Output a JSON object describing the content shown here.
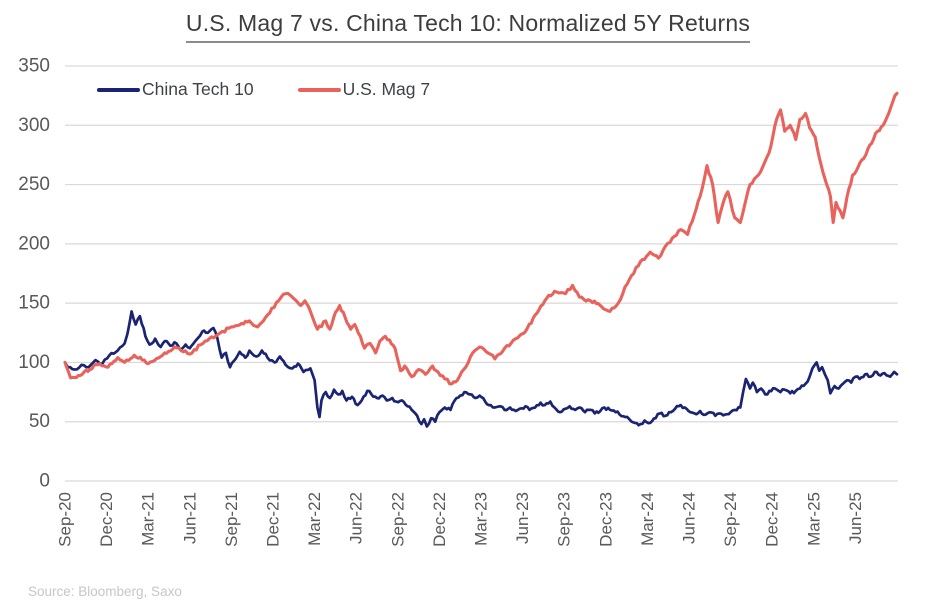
{
  "header": {
    "title": "U.S. Mag 7 vs. China Tech 10: Normalized 5Y Returns"
  },
  "footer": {
    "source": "Source: Bloomberg, Saxo"
  },
  "legend": {
    "items": [
      {
        "label": "China Tech 10",
        "color": "#1a2473"
      },
      {
        "label": "U.S. Mag 7",
        "color": "#e8635c"
      }
    ]
  },
  "colors": {
    "background": "#ffffff",
    "gridline": "#d9d9d9",
    "axis_text": "#595959",
    "title_text": "#3d3d3d",
    "title_underline": "#8c8c8c",
    "source_text": "#c6c6ce",
    "china_tech_10": "#1a2473",
    "us_mag_7": "#e8635c"
  },
  "chart_data": {
    "type": "line",
    "title": "U.S. Mag 7 vs. China Tech 10: Normalized 5Y Returns",
    "xlabel": "",
    "ylabel": "",
    "x_axis": {
      "tick_labels": [
        "Sep-20",
        "Dec-20",
        "Mar-21",
        "Jun-21",
        "Sep-21",
        "Dec-21",
        "Mar-22",
        "Jun-22",
        "Sep-22",
        "Dec-22",
        "Mar-23",
        "Jun-23",
        "Sep-23",
        "Dec-23",
        "Mar-24",
        "Jun-24",
        "Sep-24",
        "Dec-24",
        "Mar-25",
        "Jun-25"
      ],
      "tick_label_rotation_deg": 90,
      "months_range": [
        0,
        60
      ],
      "note": "x in months since Sep-2020; data extends ~1 quarter past the Jun-25 tick"
    },
    "y_axis": {
      "ticks": [
        0,
        50,
        100,
        150,
        200,
        250,
        300,
        350
      ],
      "range": [
        0,
        350
      ],
      "gridlines": true
    },
    "legend_position": "top-left",
    "series": [
      {
        "name": "China Tech 10",
        "color": "#1a2473",
        "points": [
          [
            0,
            100
          ],
          [
            0.2,
            96
          ],
          [
            0.7,
            94
          ],
          [
            1.2,
            98
          ],
          [
            1.7,
            96
          ],
          [
            2.2,
            102
          ],
          [
            2.7,
            99
          ],
          [
            3.2,
            106
          ],
          [
            3.8,
            110
          ],
          [
            4.3,
            116
          ],
          [
            4.5,
            124
          ],
          [
            4.8,
            143
          ],
          [
            5.1,
            132
          ],
          [
            5.4,
            139
          ],
          [
            5.8,
            122
          ],
          [
            6.1,
            115
          ],
          [
            6.5,
            120
          ],
          [
            6.9,
            113
          ],
          [
            7.2,
            118
          ],
          [
            7.6,
            114
          ],
          [
            7.9,
            117
          ],
          [
            8.3,
            111
          ],
          [
            8.7,
            115
          ],
          [
            9,
            112
          ],
          [
            9.4,
            118
          ],
          [
            9.9,
            126
          ],
          [
            10.3,
            125
          ],
          [
            10.7,
            129
          ],
          [
            11,
            120
          ],
          [
            11.3,
            104
          ],
          [
            11.6,
            108
          ],
          [
            11.9,
            96
          ],
          [
            12.3,
            103
          ],
          [
            12.6,
            109
          ],
          [
            13,
            104
          ],
          [
            13.3,
            110
          ],
          [
            13.8,
            105
          ],
          [
            14.2,
            110
          ],
          [
            14.6,
            104
          ],
          [
            15.1,
            100
          ],
          [
            15.5,
            105
          ],
          [
            15.9,
            98
          ],
          [
            16.4,
            95
          ],
          [
            16.8,
            99
          ],
          [
            17.2,
            92
          ],
          [
            17.7,
            95
          ],
          [
            18,
            85
          ],
          [
            18.2,
            62
          ],
          [
            18.35,
            54
          ],
          [
            18.5,
            68
          ],
          [
            18.8,
            75
          ],
          [
            19.1,
            70
          ],
          [
            19.4,
            77
          ],
          [
            19.7,
            73
          ],
          [
            20,
            76
          ],
          [
            20.3,
            68
          ],
          [
            20.7,
            71
          ],
          [
            21.1,
            64
          ],
          [
            21.4,
            68
          ],
          [
            21.8,
            76
          ],
          [
            22.1,
            73
          ],
          [
            22.5,
            70
          ],
          [
            22.9,
            72
          ],
          [
            23.2,
            68
          ],
          [
            23.6,
            70
          ],
          [
            23.9,
            67
          ],
          [
            24.3,
            68
          ],
          [
            24.7,
            63
          ],
          [
            25,
            60
          ],
          [
            25.4,
            55
          ],
          [
            25.7,
            48
          ],
          [
            25.9,
            52
          ],
          [
            26.1,
            46
          ],
          [
            26.4,
            53
          ],
          [
            26.7,
            50
          ],
          [
            27,
            58
          ],
          [
            27.4,
            62
          ],
          [
            27.8,
            60
          ],
          [
            28.1,
            68
          ],
          [
            28.5,
            72
          ],
          [
            28.8,
            75
          ],
          [
            29.2,
            73
          ],
          [
            29.6,
            70
          ],
          [
            29.9,
            72
          ],
          [
            30.3,
            67
          ],
          [
            30.7,
            64
          ],
          [
            31,
            62
          ],
          [
            31.4,
            63
          ],
          [
            31.7,
            60
          ],
          [
            32.1,
            62
          ],
          [
            32.5,
            59
          ],
          [
            32.8,
            61
          ],
          [
            33.2,
            63
          ],
          [
            33.5,
            60
          ],
          [
            33.9,
            62
          ],
          [
            34.3,
            66
          ],
          [
            34.6,
            64
          ],
          [
            35,
            67
          ],
          [
            35.3,
            62
          ],
          [
            35.7,
            58
          ],
          [
            36.1,
            61
          ],
          [
            36.4,
            63
          ],
          [
            36.8,
            60
          ],
          [
            37.1,
            62
          ],
          [
            37.5,
            58
          ],
          [
            37.9,
            60
          ],
          [
            38.2,
            57
          ],
          [
            38.6,
            59
          ],
          [
            38.9,
            62
          ],
          [
            39.3,
            60
          ],
          [
            39.7,
            58
          ],
          [
            40,
            56
          ],
          [
            40.4,
            54
          ],
          [
            40.7,
            52
          ],
          [
            41.1,
            49
          ],
          [
            41.5,
            48
          ],
          [
            41.8,
            51
          ],
          [
            42.2,
            49
          ],
          [
            42.6,
            53
          ],
          [
            42.9,
            57
          ],
          [
            43.3,
            55
          ],
          [
            43.7,
            58
          ],
          [
            44,
            61
          ],
          [
            44.4,
            64
          ],
          [
            44.7,
            62
          ],
          [
            45.1,
            58
          ],
          [
            45.4,
            57
          ],
          [
            45.8,
            59
          ],
          [
            46.2,
            56
          ],
          [
            46.5,
            58
          ],
          [
            46.9,
            55
          ],
          [
            47.2,
            57
          ],
          [
            47.6,
            56
          ],
          [
            48,
            58
          ],
          [
            48.3,
            60
          ],
          [
            48.7,
            62
          ],
          [
            48.9,
            75
          ],
          [
            49.1,
            86
          ],
          [
            49.4,
            78
          ],
          [
            49.6,
            83
          ],
          [
            49.9,
            75
          ],
          [
            50.2,
            78
          ],
          [
            50.5,
            73
          ],
          [
            50.8,
            76
          ],
          [
            51.2,
            78
          ],
          [
            51.6,
            75
          ],
          [
            51.9,
            77
          ],
          [
            52.3,
            74
          ],
          [
            52.7,
            76
          ],
          [
            53,
            78
          ],
          [
            53.4,
            82
          ],
          [
            53.7,
            88
          ],
          [
            53.9,
            95
          ],
          [
            54.2,
            100
          ],
          [
            54.4,
            93
          ],
          [
            54.6,
            96
          ],
          [
            54.8,
            90
          ],
          [
            55,
            85
          ],
          [
            55.2,
            74
          ],
          [
            55.5,
            80
          ],
          [
            55.8,
            78
          ],
          [
            56.1,
            82
          ],
          [
            56.4,
            85
          ],
          [
            56.7,
            83
          ],
          [
            57,
            88
          ],
          [
            57.3,
            86
          ],
          [
            57.7,
            90
          ],
          [
            58.1,
            88
          ],
          [
            58.4,
            92
          ],
          [
            58.8,
            89
          ],
          [
            59.1,
            91
          ],
          [
            59.5,
            88
          ],
          [
            59.8,
            92
          ],
          [
            60,
            90
          ]
        ]
      },
      {
        "name": "U.S. Mag 7",
        "color": "#e8635c",
        "points": [
          [
            0,
            100
          ],
          [
            0.4,
            87
          ],
          [
            1.1,
            89
          ],
          [
            1.8,
            94
          ],
          [
            2.5,
            99
          ],
          [
            3.1,
            96
          ],
          [
            3.8,
            104
          ],
          [
            4.3,
            100
          ],
          [
            5,
            106
          ],
          [
            6,
            99
          ],
          [
            6.9,
            105
          ],
          [
            7.9,
            113
          ],
          [
            9,
            107
          ],
          [
            10.1,
            118
          ],
          [
            11.2,
            125
          ],
          [
            12.3,
            131
          ],
          [
            13.3,
            135
          ],
          [
            13.9,
            130
          ],
          [
            14.6,
            140
          ],
          [
            15.4,
            152
          ],
          [
            15.9,
            158
          ],
          [
            16.4,
            155
          ],
          [
            17,
            148
          ],
          [
            17.3,
            152
          ],
          [
            17.7,
            143
          ],
          [
            18.2,
            128
          ],
          [
            18.8,
            135
          ],
          [
            19.1,
            128
          ],
          [
            19.5,
            142
          ],
          [
            19.8,
            148
          ],
          [
            20.2,
            138
          ],
          [
            20.6,
            128
          ],
          [
            20.9,
            132
          ],
          [
            21.3,
            122
          ],
          [
            21.6,
            112
          ],
          [
            22,
            116
          ],
          [
            22.4,
            108
          ],
          [
            22.7,
            118
          ],
          [
            23.1,
            122
          ],
          [
            23.4,
            119
          ],
          [
            23.8,
            112
          ],
          [
            24.2,
            93
          ],
          [
            24.5,
            97
          ],
          [
            25,
            88
          ],
          [
            25.5,
            94
          ],
          [
            26,
            90
          ],
          [
            26.5,
            97
          ],
          [
            26.9,
            92
          ],
          [
            27.4,
            86
          ],
          [
            27.9,
            82
          ],
          [
            28.3,
            85
          ],
          [
            28.9,
            96
          ],
          [
            29.4,
            108
          ],
          [
            29.9,
            113
          ],
          [
            30.5,
            108
          ],
          [
            31,
            103
          ],
          [
            31.7,
            112
          ],
          [
            32.5,
            120
          ],
          [
            33.2,
            126
          ],
          [
            33.9,
            140
          ],
          [
            34.6,
            152
          ],
          [
            35.3,
            160
          ],
          [
            36.1,
            158
          ],
          [
            36.6,
            165
          ],
          [
            37.1,
            155
          ],
          [
            37.9,
            152
          ],
          [
            38.6,
            148
          ],
          [
            39.3,
            143
          ],
          [
            39.9,
            150
          ],
          [
            40.7,
            170
          ],
          [
            41.5,
            185
          ],
          [
            42.2,
            193
          ],
          [
            42.8,
            188
          ],
          [
            43.3,
            198
          ],
          [
            43.8,
            205
          ],
          [
            44.4,
            212
          ],
          [
            44.9,
            208
          ],
          [
            45.4,
            225
          ],
          [
            45.8,
            240
          ],
          [
            46.3,
            266
          ],
          [
            46.7,
            250
          ],
          [
            47.1,
            218
          ],
          [
            47.4,
            232
          ],
          [
            47.8,
            244
          ],
          [
            48.3,
            222
          ],
          [
            48.7,
            218
          ],
          [
            49,
            232
          ],
          [
            49.4,
            250
          ],
          [
            50,
            258
          ],
          [
            50.5,
            270
          ],
          [
            50.9,
            282
          ],
          [
            51.2,
            300
          ],
          [
            51.6,
            313
          ],
          [
            51.9,
            295
          ],
          [
            52.3,
            300
          ],
          [
            52.7,
            288
          ],
          [
            53,
            305
          ],
          [
            53.4,
            310
          ],
          [
            53.7,
            298
          ],
          [
            54.1,
            290
          ],
          [
            54.5,
            268
          ],
          [
            54.8,
            255
          ],
          [
            55.2,
            240
          ],
          [
            55.4,
            218
          ],
          [
            55.6,
            235
          ],
          [
            55.9,
            228
          ],
          [
            56.1,
            222
          ],
          [
            56.4,
            240
          ],
          [
            56.8,
            258
          ],
          [
            57.2,
            265
          ],
          [
            57.6,
            272
          ],
          [
            57.9,
            280
          ],
          [
            58.3,
            288
          ],
          [
            58.6,
            295
          ],
          [
            59,
            300
          ],
          [
            59.4,
            310
          ],
          [
            59.7,
            320
          ],
          [
            60,
            327
          ]
        ]
      }
    ]
  }
}
